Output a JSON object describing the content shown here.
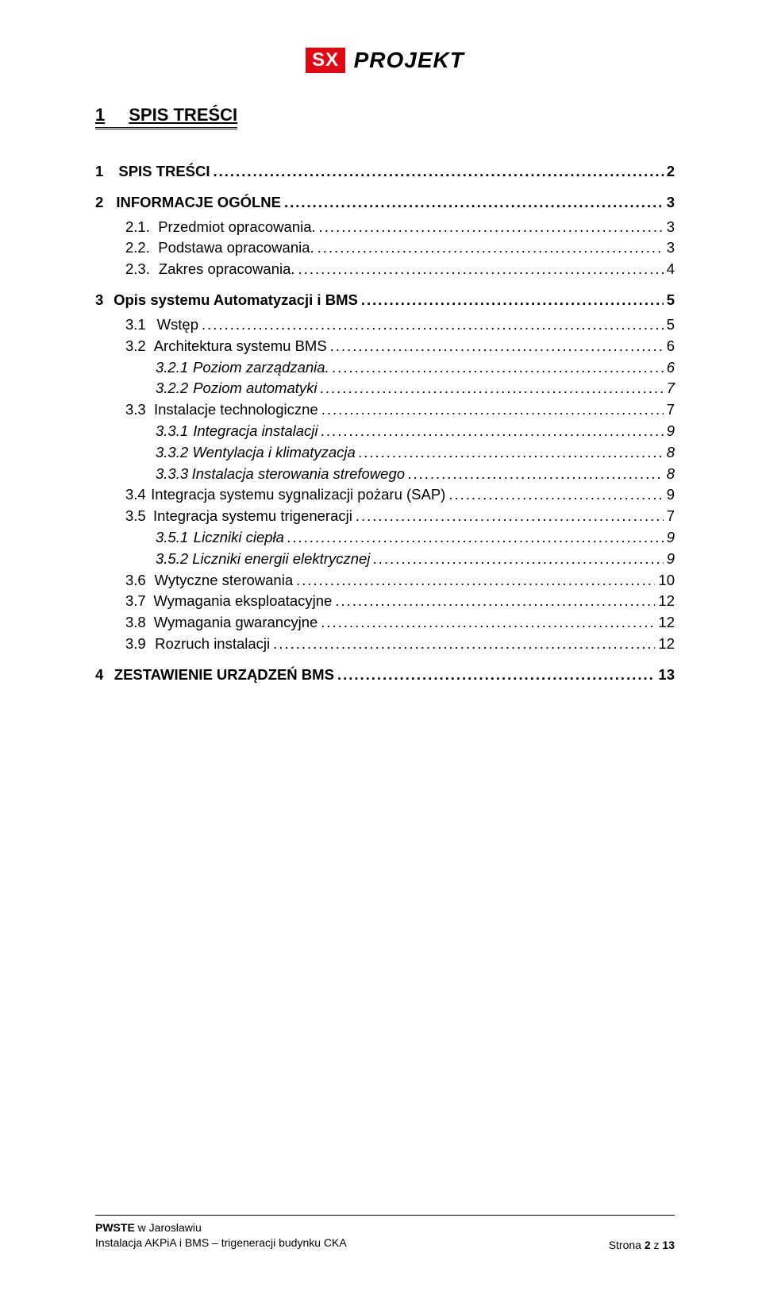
{
  "logo": {
    "badge": "SX",
    "text": "PROJEKT",
    "badge_bg": "#e30613",
    "badge_fg": "#ffffff"
  },
  "title": {
    "num": "1",
    "label": "SPIS TREŚCI"
  },
  "toc": [
    {
      "indent": 0,
      "bold": true,
      "italic": false,
      "num": "1",
      "gap": "lg",
      "label": "SPIS TREŚCI",
      "page": "2",
      "before": "md"
    },
    {
      "indent": 0,
      "bold": true,
      "italic": false,
      "num": "2",
      "gap": "lg",
      "label": "INFORMACJE OGÓLNE",
      "page": "3",
      "before": "md"
    },
    {
      "indent": 1,
      "bold": false,
      "italic": false,
      "num": "2.1.",
      "gap": "md",
      "label": "Przedmiot opracowania.",
      "page": "3",
      "before": "sm"
    },
    {
      "indent": 1,
      "bold": false,
      "italic": false,
      "num": "2.2.",
      "gap": "md",
      "label": "Podstawa opracowania.",
      "page": "3",
      "before": ""
    },
    {
      "indent": 1,
      "bold": false,
      "italic": false,
      "num": "2.3.",
      "gap": "md",
      "label": "Zakres opracowania.",
      "page": "4",
      "before": ""
    },
    {
      "indent": 0,
      "bold": true,
      "italic": false,
      "num": "3",
      "gap": "lg",
      "label": "Opis systemu Automatyzacji i BMS",
      "page": "5",
      "before": "md"
    },
    {
      "indent": 1,
      "bold": false,
      "italic": false,
      "num": "3.1",
      "gap": "md",
      "label": "Wstęp",
      "page": "5",
      "before": "sm"
    },
    {
      "indent": 1,
      "bold": false,
      "italic": false,
      "num": "3.2",
      "gap": "md",
      "label": "Architektura systemu BMS",
      "page": "6",
      "before": ""
    },
    {
      "indent": 2,
      "bold": false,
      "italic": true,
      "num": "3.2.1",
      "gap": "sm",
      "label": "Poziom zarządzania.",
      "page": "6",
      "before": ""
    },
    {
      "indent": 2,
      "bold": false,
      "italic": true,
      "num": "3.2.2",
      "gap": "sm",
      "label": "Poziom automatyki",
      "page": "7",
      "before": ""
    },
    {
      "indent": 1,
      "bold": false,
      "italic": false,
      "num": "3.3",
      "gap": "md",
      "label": "Instalacje technologiczne",
      "page": "7",
      "before": ""
    },
    {
      "indent": 2,
      "bold": false,
      "italic": true,
      "num": "3.3.1",
      "gap": "sm",
      "label": "Integracja instalacji",
      "page": "9",
      "before": ""
    },
    {
      "indent": 2,
      "bold": false,
      "italic": true,
      "num": "3.3.2",
      "gap": "sm",
      "label": "Wentylacja i klimatyzacja",
      "page": "8",
      "before": ""
    },
    {
      "indent": 2,
      "bold": false,
      "italic": true,
      "num": "3.3.3",
      "gap": "sm",
      "label": "Instalacja sterowania strefowego",
      "page": "8",
      "before": ""
    },
    {
      "indent": 1,
      "bold": false,
      "italic": false,
      "num": "3.4",
      "gap": "md",
      "label": "Integracja systemu sygnalizacji pożaru (SAP)",
      "page": "9",
      "before": ""
    },
    {
      "indent": 1,
      "bold": false,
      "italic": false,
      "num": "3.5",
      "gap": "md",
      "label": "Integracja systemu trigeneracji",
      "page": "7",
      "before": ""
    },
    {
      "indent": 2,
      "bold": false,
      "italic": true,
      "num": "3.5.1",
      "gap": "sm",
      "label": "Liczniki ciepła",
      "page": "9",
      "before": ""
    },
    {
      "indent": 2,
      "bold": false,
      "italic": true,
      "num": "3.5.2",
      "gap": "sm",
      "label": "Liczniki energii elektrycznej",
      "page": "9",
      "before": ""
    },
    {
      "indent": 1,
      "bold": false,
      "italic": false,
      "num": "3.6",
      "gap": "md",
      "label": "Wytyczne sterowania",
      "page": "10",
      "before": ""
    },
    {
      "indent": 1,
      "bold": false,
      "italic": false,
      "num": "3.7",
      "gap": "md",
      "label": "Wymagania eksploatacyjne",
      "page": "12",
      "before": ""
    },
    {
      "indent": 1,
      "bold": false,
      "italic": false,
      "num": "3.8",
      "gap": "md",
      "label": "Wymagania gwarancyjne",
      "page": "12",
      "before": ""
    },
    {
      "indent": 1,
      "bold": false,
      "italic": false,
      "num": "3.9",
      "gap": "md",
      "label": "Rozruch instalacji",
      "page": "12",
      "before": ""
    },
    {
      "indent": 0,
      "bold": true,
      "italic": false,
      "num": "4",
      "gap": "lg",
      "label": "ZESTAWIENIE URZĄDZEŃ BMS",
      "page": "13",
      "before": "md"
    }
  ],
  "footer": {
    "line1_bold": "PWSTE",
    "line1_rest": " w Jarosławiu",
    "line2": "Instalacja AKPiA i BMS  – trigeneracji budynku CKA",
    "right_prefix": "Strona ",
    "right_bold": "2",
    "right_suffix": " z ",
    "right_total": "13"
  }
}
